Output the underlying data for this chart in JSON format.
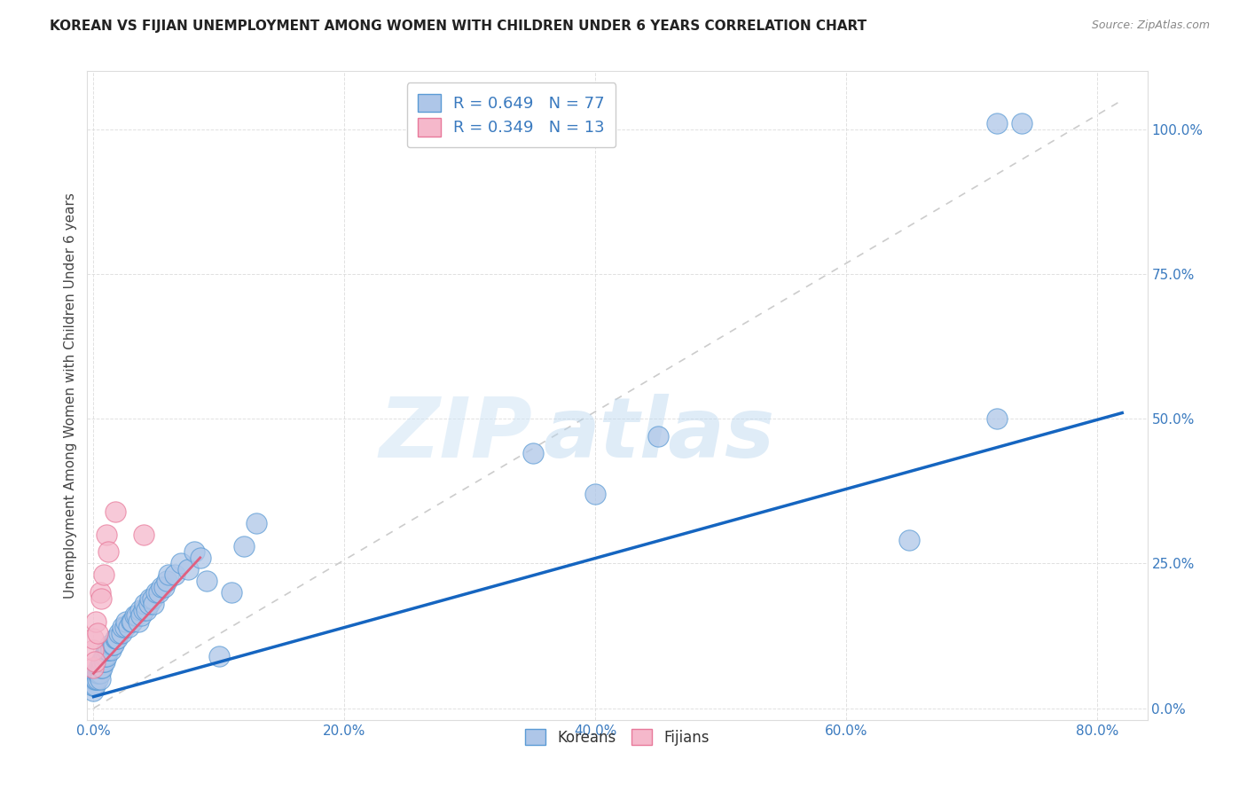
{
  "title": "KOREAN VS FIJIAN UNEMPLOYMENT AMONG WOMEN WITH CHILDREN UNDER 6 YEARS CORRELATION CHART",
  "source": "Source: ZipAtlas.com",
  "ylabel": "Unemployment Among Women with Children Under 6 years",
  "xlabel_ticks": [
    "0.0%",
    "20.0%",
    "40.0%",
    "60.0%",
    "80.0%"
  ],
  "ylabel_ticks": [
    "0.0%",
    "25.0%",
    "50.0%",
    "75.0%",
    "100.0%"
  ],
  "x_tick_vals": [
    0.0,
    0.2,
    0.4,
    0.6,
    0.8
  ],
  "y_tick_vals": [
    0.0,
    0.25,
    0.5,
    0.75,
    1.0
  ],
  "xlim": [
    -0.005,
    0.84
  ],
  "ylim": [
    -0.02,
    1.1
  ],
  "korean_R": 0.649,
  "korean_N": 77,
  "fijian_R": 0.349,
  "fijian_N": 13,
  "korean_color": "#aec6e8",
  "fijian_color": "#f5b8cb",
  "korean_edge_color": "#5b9bd5",
  "fijian_edge_color": "#e8799a",
  "korean_line_color": "#1565c0",
  "fijian_line_color": "#e06080",
  "diagonal_color": "#cccccc",
  "background_color": "#ffffff",
  "watermark_zip": "ZIP",
  "watermark_atlas": "atlas",
  "legend_text_color": "#3a7abf",
  "tick_color": "#3a7abf",
  "title_color": "#222222",
  "source_color": "#888888",
  "ylabel_color": "#444444",
  "korean_line_x0": 0.0,
  "korean_line_x1": 0.82,
  "korean_line_y0": 0.02,
  "korean_line_y1": 0.51,
  "fijian_line_x0": 0.0,
  "fijian_line_x1": 0.085,
  "fijian_line_y0": 0.06,
  "fijian_line_y1": 0.26,
  "korean_x": [
    0.0,
    0.0,
    0.0,
    0.0,
    0.001,
    0.001,
    0.002,
    0.002,
    0.003,
    0.003,
    0.004,
    0.004,
    0.005,
    0.005,
    0.005,
    0.006,
    0.006,
    0.007,
    0.007,
    0.008,
    0.008,
    0.009,
    0.009,
    0.01,
    0.01,
    0.011,
    0.012,
    0.013,
    0.014,
    0.015,
    0.016,
    0.017,
    0.018,
    0.019,
    0.02,
    0.022,
    0.023,
    0.025,
    0.026,
    0.028,
    0.03,
    0.031,
    0.033,
    0.034,
    0.036,
    0.037,
    0.038,
    0.04,
    0.041,
    0.042,
    0.044,
    0.045,
    0.047,
    0.048,
    0.05,
    0.052,
    0.054,
    0.056,
    0.058,
    0.06,
    0.065,
    0.07,
    0.075,
    0.08,
    0.085,
    0.09,
    0.1,
    0.11,
    0.12,
    0.13,
    0.35,
    0.4,
    0.45,
    0.65,
    0.72,
    0.72,
    0.74
  ],
  "korean_y": [
    0.03,
    0.04,
    0.04,
    0.05,
    0.04,
    0.05,
    0.05,
    0.06,
    0.05,
    0.06,
    0.06,
    0.07,
    0.06,
    0.07,
    0.05,
    0.07,
    0.08,
    0.07,
    0.08,
    0.08,
    0.09,
    0.08,
    0.09,
    0.09,
    0.1,
    0.1,
    0.1,
    0.11,
    0.1,
    0.11,
    0.11,
    0.12,
    0.12,
    0.12,
    0.13,
    0.13,
    0.14,
    0.14,
    0.15,
    0.14,
    0.15,
    0.15,
    0.16,
    0.16,
    0.15,
    0.17,
    0.16,
    0.17,
    0.18,
    0.17,
    0.18,
    0.19,
    0.19,
    0.18,
    0.2,
    0.2,
    0.21,
    0.21,
    0.22,
    0.23,
    0.23,
    0.25,
    0.24,
    0.27,
    0.26,
    0.22,
    0.09,
    0.2,
    0.28,
    0.32,
    0.44,
    0.37,
    0.47,
    0.29,
    0.5,
    1.01,
    1.01
  ],
  "fijian_x": [
    0.0,
    0.0,
    0.0,
    0.001,
    0.002,
    0.003,
    0.005,
    0.006,
    0.008,
    0.01,
    0.012,
    0.017,
    0.04
  ],
  "fijian_y": [
    0.07,
    0.1,
    0.12,
    0.08,
    0.15,
    0.13,
    0.2,
    0.19,
    0.23,
    0.3,
    0.27,
    0.34,
    0.3
  ]
}
